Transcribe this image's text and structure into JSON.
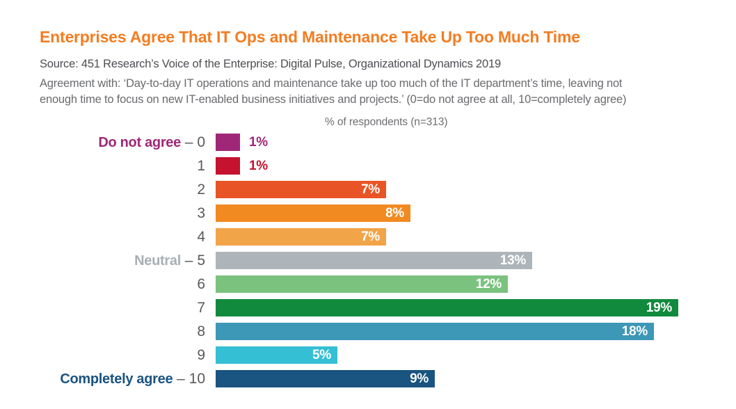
{
  "title": "Enterprises Agree That IT Ops and Maintenance Take Up Too Much Time",
  "source": "Source: 451 Research’s Voice of the Enterprise: Digital Pulse, Organizational Dynamics 2019",
  "description_line1": "Agreement with: ‘Day-to-day IT operations and maintenance take up too much of the IT department’s time, leaving not",
  "description_line2": "enough time to focus on new IT-enabled business initiatives and projects.’ (0=do not agree at all, 10=completely agree)",
  "chart_header": "% of respondents (n=313)",
  "colors": {
    "title": "#F47C20",
    "source_text": "#4D4E53",
    "description_text": "#6A6B6E",
    "chart_header_text": "#6D6E71",
    "category_number": "#58595B"
  },
  "chart_data": {
    "type": "bar",
    "orientation": "horizontal",
    "title": "% of respondents (n=313)",
    "n_respondents": 313,
    "value_unit": "%",
    "xlim": [
      0,
      19.5
    ],
    "grid": false,
    "legend": "none",
    "categories": [
      "0",
      "1",
      "2",
      "3",
      "4",
      "5",
      "6",
      "7",
      "8",
      "9",
      "10"
    ],
    "values": [
      1,
      1,
      7,
      8,
      7,
      13,
      12,
      19,
      18,
      5,
      9
    ],
    "rows": [
      {
        "category": "0",
        "prefix": "Do not agree",
        "prefix_color": "#A02778",
        "value": 1,
        "value_label": "1%",
        "bar_color": "#A02778",
        "value_label_position": "outside",
        "value_label_color": "#A02778"
      },
      {
        "category": "1",
        "prefix": "",
        "prefix_color": "",
        "value": 1,
        "value_label": "1%",
        "bar_color": "#C5122E",
        "value_label_position": "outside",
        "value_label_color": "#C5122E"
      },
      {
        "category": "2",
        "prefix": "",
        "prefix_color": "",
        "value": 7,
        "value_label": "7%",
        "bar_color": "#E85426",
        "value_label_position": "inside",
        "value_label_color": "#FFFFFF"
      },
      {
        "category": "3",
        "prefix": "",
        "prefix_color": "",
        "value": 8,
        "value_label": "8%",
        "bar_color": "#F18A21",
        "value_label_position": "inside",
        "value_label_color": "#FFFFFF"
      },
      {
        "category": "4",
        "prefix": "",
        "prefix_color": "",
        "value": 7,
        "value_label": "7%",
        "bar_color": "#F2A449",
        "value_label_position": "inside",
        "value_label_color": "#FFFFFF"
      },
      {
        "category": "5",
        "prefix": "Neutral",
        "prefix_color": "#A9AFB4",
        "value": 13,
        "value_label": "13%",
        "bar_color": "#AEB5BA",
        "value_label_position": "inside",
        "value_label_color": "#FFFFFF"
      },
      {
        "category": "6",
        "prefix": "",
        "prefix_color": "",
        "value": 12,
        "value_label": "12%",
        "bar_color": "#7BC27E",
        "value_label_position": "inside",
        "value_label_color": "#FFFFFF"
      },
      {
        "category": "7",
        "prefix": "",
        "prefix_color": "",
        "value": 19,
        "value_label": "19%",
        "bar_color": "#128A3E",
        "value_label_position": "inside",
        "value_label_color": "#FFFFFF"
      },
      {
        "category": "8",
        "prefix": "",
        "prefix_color": "",
        "value": 18,
        "value_label": "18%",
        "bar_color": "#3D97B6",
        "value_label_position": "inside",
        "value_label_color": "#FFFFFF"
      },
      {
        "category": "9",
        "prefix": "",
        "prefix_color": "",
        "value": 5,
        "value_label": "5%",
        "bar_color": "#35BFD4",
        "value_label_position": "inside",
        "value_label_color": "#FFFFFF"
      },
      {
        "category": "10",
        "prefix": "Completely agree",
        "prefix_color": "#1A5480",
        "value": 9,
        "value_label": "9%",
        "bar_color": "#1A5480",
        "value_label_position": "inside",
        "value_label_color": "#FFFFFF"
      }
    ],
    "category_separator": " – ",
    "pixels_per_percent": 35
  }
}
